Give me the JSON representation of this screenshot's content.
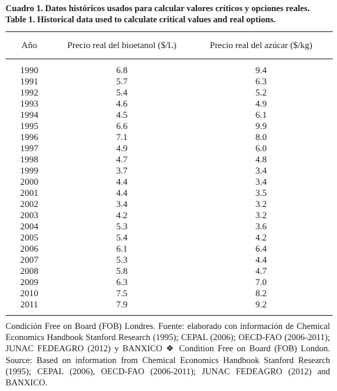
{
  "header": {
    "title": "Cuadro 1. Datos históricos usados para calcular valores críticos y opciones reales.",
    "subtitle": "Table 1. Historical data used to calculate critical values and real options."
  },
  "table": {
    "columns": [
      "Año",
      "Precio real del bioetanol ($/L)",
      "Precio real del azúcar ($/kg)"
    ],
    "rows": [
      [
        "1990",
        "6.8",
        "9.4"
      ],
      [
        "1991",
        "5.7",
        "6.3"
      ],
      [
        "1992",
        "5.4",
        "5.2"
      ],
      [
        "1993",
        "4.6",
        "4.9"
      ],
      [
        "1994",
        "4.5",
        "6.1"
      ],
      [
        "1995",
        "6.6",
        "9.9"
      ],
      [
        "1996",
        "7.1",
        "8.0"
      ],
      [
        "1997",
        "4.9",
        "6.0"
      ],
      [
        "1998",
        "4.7",
        "4.8"
      ],
      [
        "1999",
        "3.7",
        "3.4"
      ],
      [
        "2000",
        "4.4",
        "3.4"
      ],
      [
        "2001",
        "4.4",
        "3.5"
      ],
      [
        "2002",
        "3.4",
        "3.2"
      ],
      [
        "2003",
        "4.2",
        "3.2"
      ],
      [
        "2004",
        "5.3",
        "3.6"
      ],
      [
        "2005",
        "5.4",
        "4.2"
      ],
      [
        "2006",
        "6.1",
        "6.4"
      ],
      [
        "2007",
        "5.3",
        "4.4"
      ],
      [
        "2008",
        "5.8",
        "4.7"
      ],
      [
        "2009",
        "6.3",
        "7.0"
      ],
      [
        "2010",
        "7.5",
        "8.2"
      ],
      [
        "2011",
        "7.9",
        "9.2"
      ]
    ]
  },
  "footnote": "Condición Free on Board (FOB) Londres. Fuente: elaborado con información de Chemical Economics Handbook Stanford Research (1995); CEPAL (2006); OECD-FAO (2006-2011); JUNAC FEDEAGRO (2012) y BANXICO ❖ Condition Free on Board (FOB) London. Source: Based on information from Chemical Economics Handbook Stanford Research (1995); CEPAL (2006), OECD-FAO (2006-2011); JUNAC FEDEAGRO (2012) and BANXICO."
}
